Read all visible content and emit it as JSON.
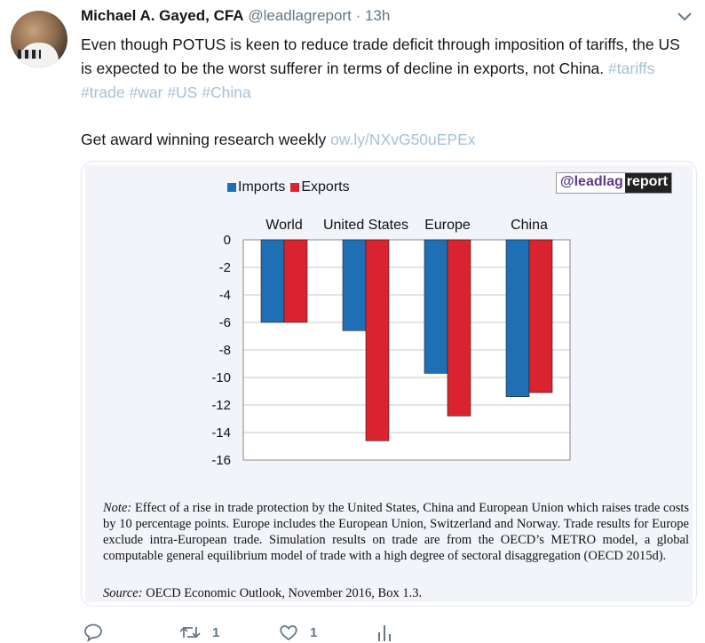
{
  "tweet": {
    "author_name": "Michael A. Gayed, CFA",
    "handle": "@leadlagreport",
    "separator": "·",
    "time": "13h",
    "text_main": "Even though POTUS is keen to reduce trade deficit through imposition of tariffs, the US is expected to be the worst sufferer in terms of decline in exports, not China.",
    "hashtags": [
      "#tariffs",
      "#trade",
      "#war",
      "#US",
      "#China"
    ],
    "line2_text": "Get award winning research weekly",
    "line2_link": "ow.ly/NXvG50uEPEx"
  },
  "card": {
    "brand_part1": "@leadlag",
    "brand_part2": "report",
    "note_label": "Note:",
    "note_text": "Effect of a rise in trade protection by the United States, China and European Union which raises trade costs by 10 percentage points. Europe includes the European Union, Switzerland and Norway. Trade results for Europe exclude intra-European trade. Simulation results on trade are from the OECD’s METRO model, a global computable general equilibrium model of trade with a high degree of sectoral disaggregation (OECD 2015d).",
    "source_label": "Source:",
    "source_text": "OECD Economic Outlook, November 2016, Box 1.3."
  },
  "chart_data": {
    "type": "bar",
    "title": "",
    "categories": [
      "World",
      "United States",
      "Europe",
      "China"
    ],
    "series": [
      {
        "name": "Imports",
        "color": "#1f6fb5",
        "values": [
          -6.0,
          -6.6,
          -9.7,
          -11.4
        ]
      },
      {
        "name": "Exports",
        "color": "#d9232e",
        "values": [
          -6.0,
          -14.6,
          -12.8,
          -11.1
        ]
      }
    ],
    "y_ticks": [
      0,
      -2,
      -4,
      -6,
      -8,
      -10,
      -12,
      -14,
      -16
    ],
    "ylim": [
      -16,
      0
    ],
    "xlabel": "",
    "ylabel": "",
    "grid": true,
    "legend": "top-left",
    "category_labels_position": "top"
  },
  "actions": {
    "reply_count": "",
    "retweet_count": "1",
    "like_count": "1"
  },
  "icons": [
    "caret-down-icon",
    "reply-icon",
    "retweet-icon",
    "like-icon",
    "analytics-icon"
  ]
}
